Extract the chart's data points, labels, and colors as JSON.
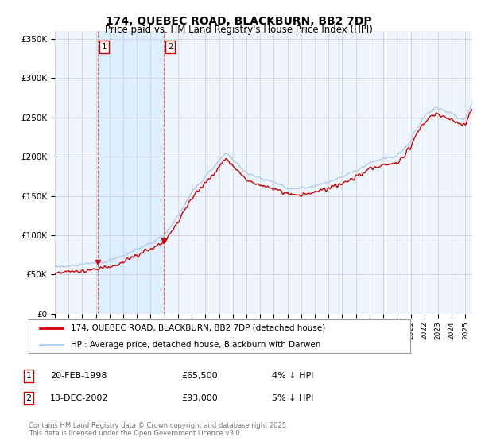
{
  "title": "174, QUEBEC ROAD, BLACKBURN, BB2 7DP",
  "subtitle": "Price paid vs. HM Land Registry's House Price Index (HPI)",
  "ylim": [
    0,
    360000
  ],
  "yticks": [
    0,
    50000,
    100000,
    150000,
    200000,
    250000,
    300000,
    350000
  ],
  "ytick_labels": [
    "£0",
    "£50K",
    "£100K",
    "£150K",
    "£200K",
    "£250K",
    "£300K",
    "£350K"
  ],
  "hpi_color": "#aaccee",
  "price_color": "#cc0000",
  "vline_color": "#dd4444",
  "shade_color": "#ddeeff",
  "grid_color": "#cccccc",
  "background_color": "#eef4fb",
  "purchases": [
    {
      "date": 1998.13,
      "price": 65500,
      "label": "1"
    },
    {
      "date": 2002.95,
      "price": 93000,
      "label": "2"
    }
  ],
  "legend_entries": [
    "174, QUEBEC ROAD, BLACKBURN, BB2 7DP (detached house)",
    "HPI: Average price, detached house, Blackburn with Darwen"
  ],
  "table_rows": [
    {
      "num": "1",
      "date": "20-FEB-1998",
      "price": "£65,500",
      "note": "4% ↓ HPI"
    },
    {
      "num": "2",
      "date": "13-DEC-2002",
      "price": "£93,000",
      "note": "5% ↓ HPI"
    }
  ],
  "footer": "Contains HM Land Registry data © Crown copyright and database right 2025.\nThis data is licensed under the Open Government Licence v3.0.",
  "xstart": 1995,
  "xend": 2025.5
}
